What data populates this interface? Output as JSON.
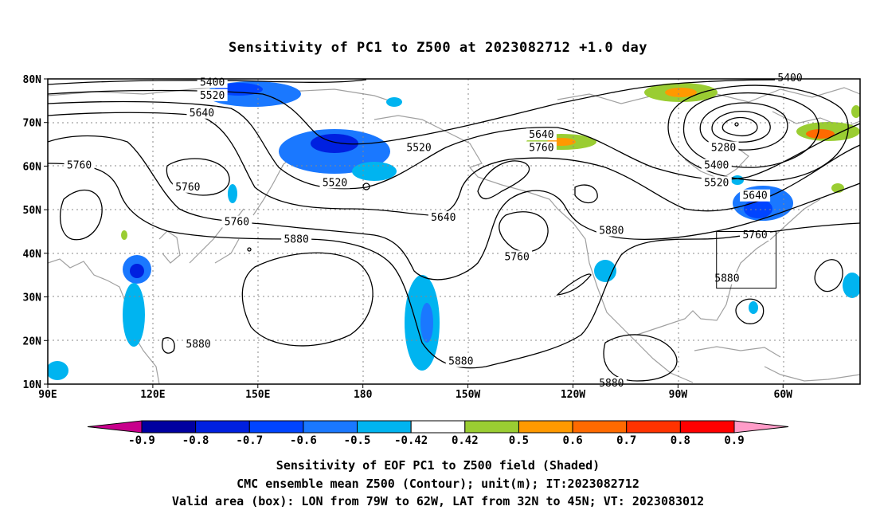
{
  "title": "Sensitivity of PC1 to Z500 at 2023082712 +1.0 day",
  "axes": {
    "lat_labels": [
      "80N",
      "70N",
      "60N",
      "50N",
      "40N",
      "30N",
      "20N",
      "10N"
    ],
    "lat_values": [
      80,
      70,
      60,
      50,
      40,
      30,
      20,
      10
    ],
    "lon_labels": [
      "90E",
      "120E",
      "150E",
      "180",
      "150W",
      "120W",
      "90W",
      "60W"
    ],
    "lon_values": [
      90,
      120,
      150,
      180,
      210,
      240,
      270,
      300
    ],
    "lon_range": [
      90,
      322
    ],
    "lat_range": [
      10,
      80
    ]
  },
  "contour_labels": [
    {
      "text": "5400",
      "lon": 137,
      "lat": 79
    },
    {
      "text": "5520",
      "lon": 137,
      "lat": 76
    },
    {
      "text": "5640",
      "lon": 134,
      "lat": 72
    },
    {
      "text": "5760",
      "lon": 99,
      "lat": 60
    },
    {
      "text": "5760",
      "lon": 130,
      "lat": 55
    },
    {
      "text": "5760",
      "lon": 144,
      "lat": 47
    },
    {
      "text": "5880",
      "lon": 161,
      "lat": 43
    },
    {
      "text": "5880",
      "lon": 133,
      "lat": 19
    },
    {
      "text": "5520",
      "lon": 172,
      "lat": 56
    },
    {
      "text": "5520",
      "lon": 196,
      "lat": 64
    },
    {
      "text": "5640",
      "lon": 203,
      "lat": 48
    },
    {
      "text": "5640",
      "lon": 231,
      "lat": 67
    },
    {
      "text": "5760",
      "lon": 231,
      "lat": 64
    },
    {
      "text": "5760",
      "lon": 224,
      "lat": 39
    },
    {
      "text": "5880",
      "lon": 251,
      "lat": 45
    },
    {
      "text": "5880",
      "lon": 208,
      "lat": 15
    },
    {
      "text": "5880",
      "lon": 251,
      "lat": 10
    },
    {
      "text": "5400",
      "lon": 302,
      "lat": 80
    },
    {
      "text": "5280",
      "lon": 283,
      "lat": 64
    },
    {
      "text": "5400",
      "lon": 281,
      "lat": 60
    },
    {
      "text": "5520",
      "lon": 281,
      "lat": 56
    },
    {
      "text": "5640",
      "lon": 292,
      "lat": 53
    },
    {
      "text": "5760",
      "lon": 292,
      "lat": 44
    },
    {
      "text": "5880",
      "lon": 284,
      "lat": 34
    }
  ],
  "valid_box": {
    "lon_min": 281,
    "lon_max": 298,
    "lat_min": 32,
    "lat_max": 45
  },
  "colorbar": {
    "labels": [
      "-0.9",
      "-0.8",
      "-0.7",
      "-0.6",
      "-0.5",
      "-0.42",
      "0.42",
      "0.5",
      "0.6",
      "0.7",
      "0.8",
      "0.9"
    ],
    "colors": [
      "#0000a0",
      "#0020e0",
      "#0044ff",
      "#1a78ff",
      "#00b4f0",
      "#ffffff",
      "#9acd32",
      "#ff9900",
      "#ff6a00",
      "#ff3300",
      "#ff0000"
    ],
    "low_extend": "#c8008c",
    "high_extend": "#ff9cc8"
  },
  "footer": {
    "line1": "Sensitivity of EOF PC1 to Z500 field (Shaded)",
    "line2": "CMC ensemble mean Z500 (Contour); unit(m); IT:2023082712",
    "line3": "Valid area (box): LON from 79W to 62W, LAT from 32N to 45N; VT: 2023083012"
  }
}
